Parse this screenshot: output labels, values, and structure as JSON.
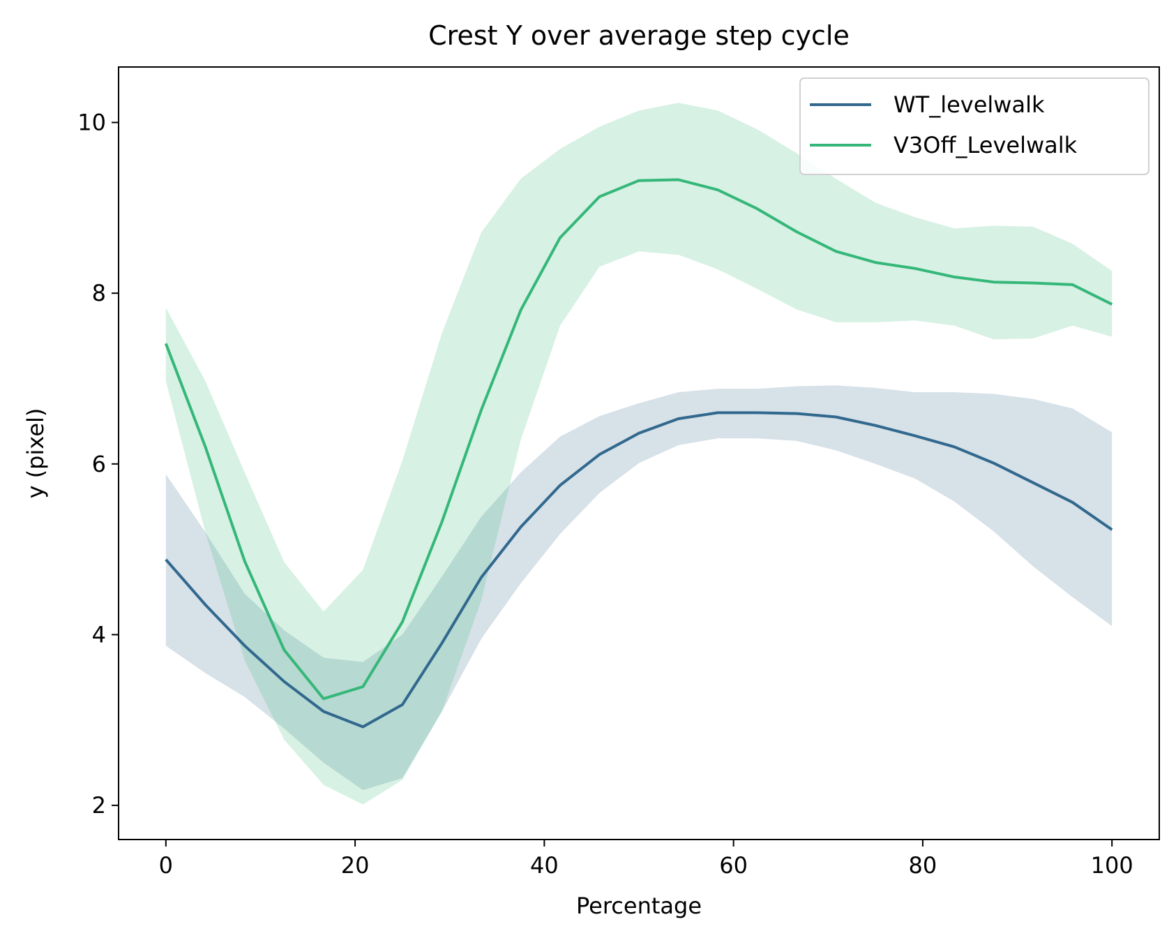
{
  "chart_data": {
    "type": "line",
    "title": "Crest Y over average step cycle",
    "xlabel": "Percentage",
    "ylabel": "y (pixel)",
    "xlim": [
      -5,
      105
    ],
    "ylim": [
      1.6,
      10.65
    ],
    "xticks": [
      0,
      20,
      40,
      60,
      80,
      100
    ],
    "xtick_labels": [
      "0",
      "20",
      "40",
      "60",
      "80",
      "100"
    ],
    "yticks": [
      2,
      4,
      6,
      8,
      10
    ],
    "ytick_labels": [
      "2",
      "4",
      "6",
      "8",
      "10"
    ],
    "grid": false,
    "legend_position": "upper-right",
    "x": [
      0,
      4.17,
      8.33,
      12.5,
      16.67,
      20.83,
      25,
      29.17,
      33.33,
      37.5,
      41.67,
      45.83,
      50,
      54.17,
      58.33,
      62.5,
      66.67,
      70.83,
      75,
      79.17,
      83.33,
      87.5,
      91.67,
      95.83,
      100
    ],
    "series": [
      {
        "name": "WT_levelwalk",
        "color": "#31688e",
        "band_color": "#31688e",
        "band_opacity": 0.2,
        "values": [
          4.88,
          4.35,
          3.87,
          3.45,
          3.1,
          2.92,
          3.18,
          3.9,
          4.67,
          5.26,
          5.75,
          6.11,
          6.36,
          6.53,
          6.6,
          6.6,
          6.59,
          6.55,
          6.45,
          6.33,
          6.2,
          6.01,
          5.78,
          5.55,
          5.23
        ],
        "lower": [
          3.87,
          3.55,
          3.27,
          2.9,
          2.5,
          2.18,
          2.32,
          3.1,
          3.95,
          4.6,
          5.18,
          5.66,
          6.01,
          6.22,
          6.3,
          6.3,
          6.27,
          6.16,
          6.0,
          5.83,
          5.56,
          5.21,
          4.8,
          4.44,
          4.1
        ],
        "upper": [
          5.88,
          5.2,
          4.48,
          4.05,
          3.73,
          3.68,
          4.0,
          4.68,
          5.38,
          5.9,
          6.32,
          6.56,
          6.71,
          6.84,
          6.88,
          6.88,
          6.91,
          6.92,
          6.89,
          6.84,
          6.84,
          6.82,
          6.76,
          6.65,
          6.37
        ]
      },
      {
        "name": "V3Off_Levelwalk",
        "color": "#35b779",
        "band_color": "#35b779",
        "band_opacity": 0.2,
        "values": [
          7.41,
          6.2,
          4.86,
          3.82,
          3.25,
          3.39,
          4.15,
          5.32,
          6.63,
          7.8,
          8.65,
          9.13,
          9.32,
          9.33,
          9.21,
          8.99,
          8.72,
          8.49,
          8.36,
          8.29,
          8.19,
          8.13,
          8.12,
          8.1,
          7.87
        ],
        "lower": [
          6.97,
          5.2,
          3.7,
          2.77,
          2.24,
          2.01,
          2.3,
          3.1,
          4.4,
          6.28,
          7.62,
          8.31,
          8.49,
          8.45,
          8.28,
          8.05,
          7.81,
          7.66,
          7.66,
          7.68,
          7.62,
          7.46,
          7.47,
          7.62,
          7.49
        ],
        "upper": [
          7.83,
          6.97,
          5.9,
          4.85,
          4.27,
          4.76,
          6.04,
          7.53,
          8.71,
          9.34,
          9.69,
          9.95,
          10.14,
          10.23,
          10.14,
          9.92,
          9.64,
          9.34,
          9.06,
          8.89,
          8.76,
          8.79,
          8.78,
          8.58,
          8.26
        ]
      }
    ]
  }
}
